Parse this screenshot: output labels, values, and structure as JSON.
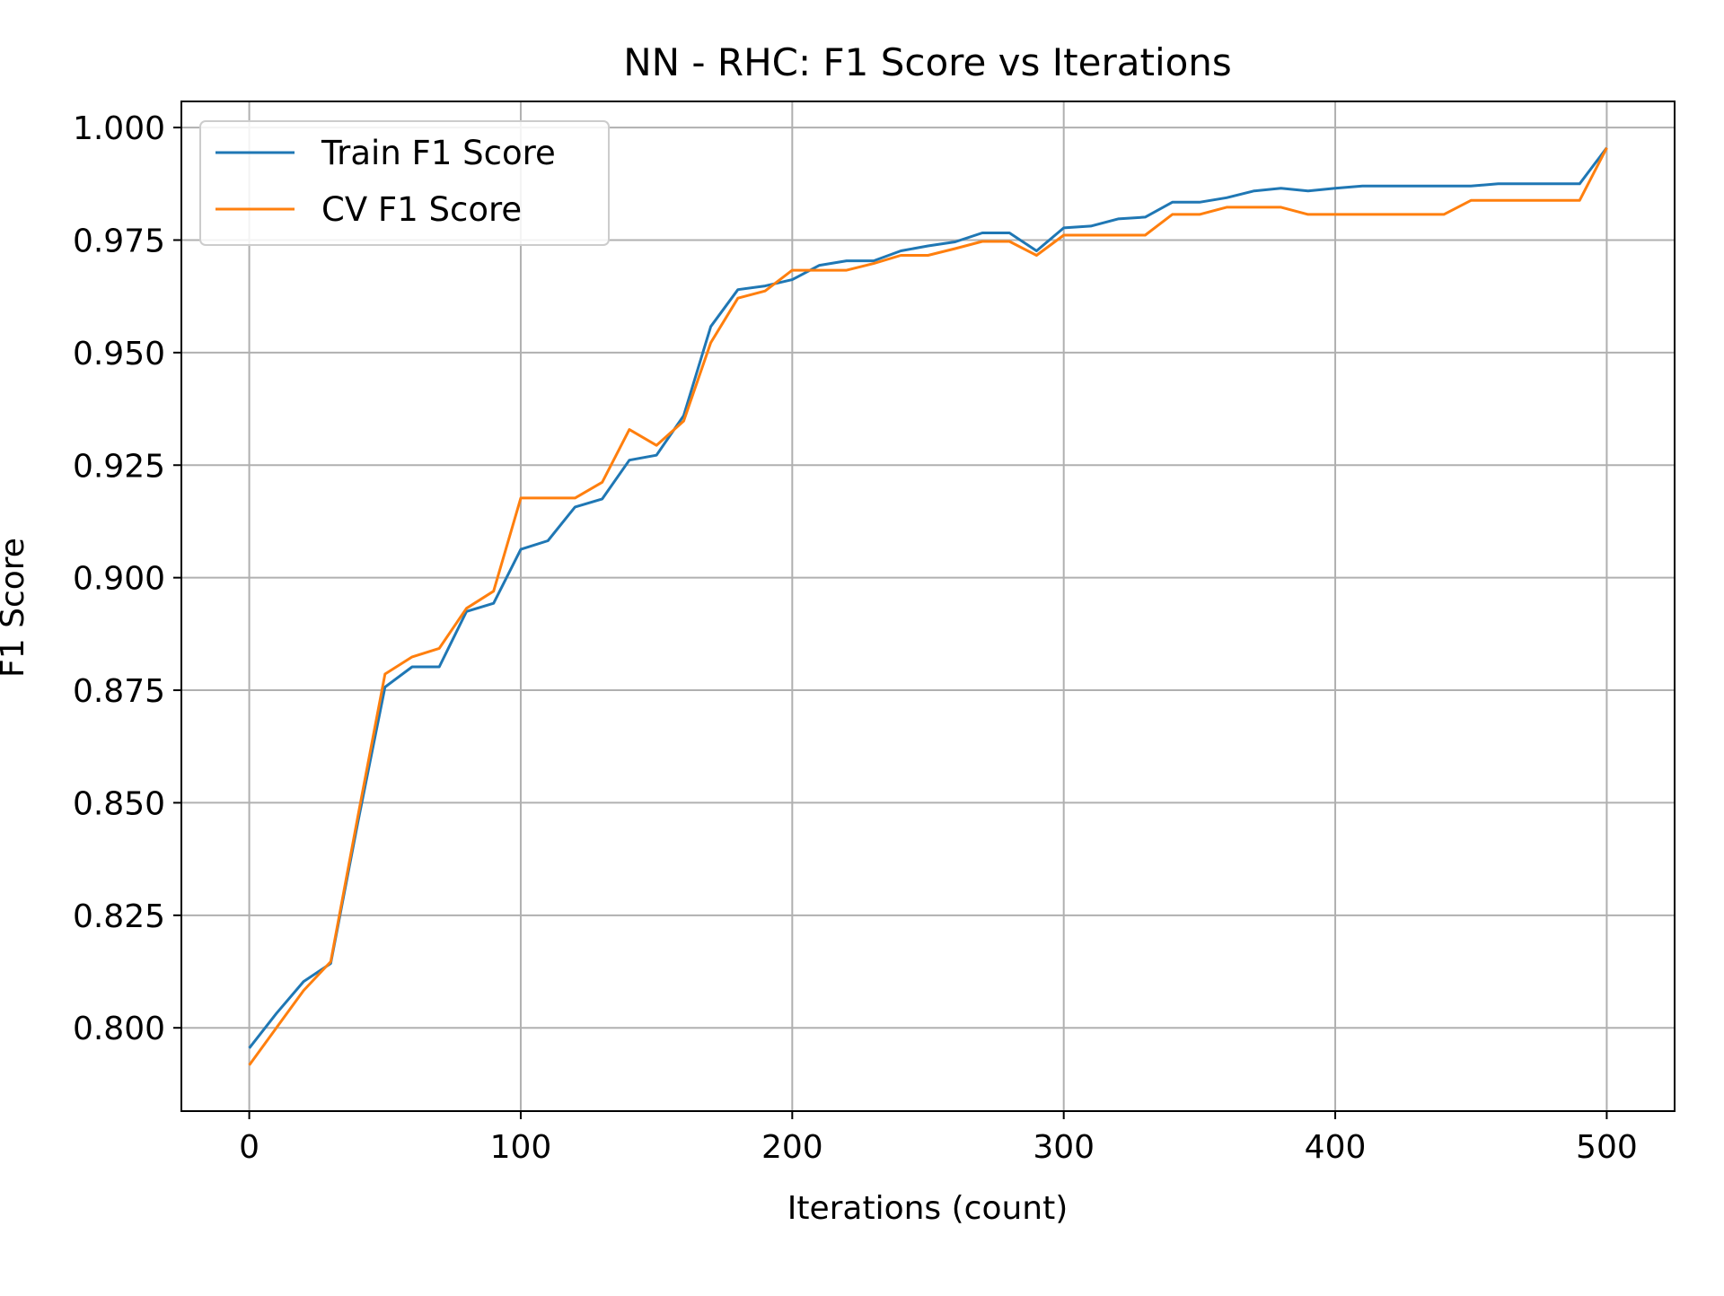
{
  "chart_data": {
    "type": "line",
    "title": "NN - RHC: F1 Score vs Iterations",
    "xlabel": "Iterations (count)",
    "ylabel": "F1 Score",
    "xlim": [
      -25,
      525
    ],
    "ylim": [
      0.7815,
      1.0058
    ],
    "xticks": [
      0,
      100,
      200,
      300,
      400,
      500
    ],
    "xtick_labels": [
      "0",
      "100",
      "200",
      "300",
      "400",
      "500"
    ],
    "yticks": [
      0.8,
      0.825,
      0.85,
      0.875,
      0.9,
      0.925,
      0.95,
      0.975,
      1.0
    ],
    "ytick_labels": [
      "0.800",
      "0.825",
      "0.850",
      "0.875",
      "0.900",
      "0.925",
      "0.950",
      "0.975",
      "1.000"
    ],
    "grid": true,
    "legend_position": "upper-left",
    "x": [
      0,
      10,
      20,
      30,
      40,
      50,
      60,
      70,
      80,
      90,
      100,
      110,
      120,
      130,
      140,
      150,
      160,
      170,
      180,
      190,
      200,
      210,
      220,
      230,
      240,
      250,
      260,
      270,
      280,
      290,
      300,
      310,
      320,
      330,
      340,
      350,
      360,
      370,
      380,
      390,
      400,
      410,
      420,
      430,
      440,
      450,
      460,
      470,
      480,
      490,
      500
    ],
    "series": [
      {
        "name": "Train F1 Score",
        "color": "#1f77b4",
        "values": [
          0.7955,
          0.8032,
          0.8103,
          0.8143,
          0.8456,
          0.8757,
          0.8802,
          0.8802,
          0.8925,
          0.8943,
          0.9063,
          0.9082,
          0.9157,
          0.9175,
          0.9261,
          0.9272,
          0.936,
          0.9558,
          0.964,
          0.9648,
          0.9662,
          0.9694,
          0.9704,
          0.9704,
          0.9726,
          0.9737,
          0.9746,
          0.9766,
          0.9766,
          0.9726,
          0.9777,
          0.9781,
          0.9797,
          0.9801,
          0.9834,
          0.9834,
          0.9844,
          0.9859,
          0.9865,
          0.9859,
          0.9865,
          0.987,
          0.987,
          0.987,
          0.987,
          0.987,
          0.9875,
          0.9875,
          0.9875,
          0.9875,
          0.9955
        ]
      },
      {
        "name": "CV F1 Score",
        "color": "#ff7f0e",
        "values": [
          0.7917,
          0.8,
          0.8083,
          0.8147,
          0.8469,
          0.8786,
          0.8824,
          0.8843,
          0.8932,
          0.897,
          0.9177,
          0.9177,
          0.9177,
          0.9212,
          0.9329,
          0.9294,
          0.9348,
          0.9522,
          0.9621,
          0.9637,
          0.9683,
          0.9683,
          0.9683,
          0.9698,
          0.9716,
          0.9716,
          0.9731,
          0.9747,
          0.9747,
          0.9716,
          0.9761,
          0.9761,
          0.9761,
          0.9761,
          0.9807,
          0.9807,
          0.9823,
          0.9823,
          0.9823,
          0.9807,
          0.9807,
          0.9807,
          0.9807,
          0.9807,
          0.9807,
          0.9838,
          0.9838,
          0.9838,
          0.9838,
          0.9838,
          0.9955
        ]
      }
    ]
  }
}
